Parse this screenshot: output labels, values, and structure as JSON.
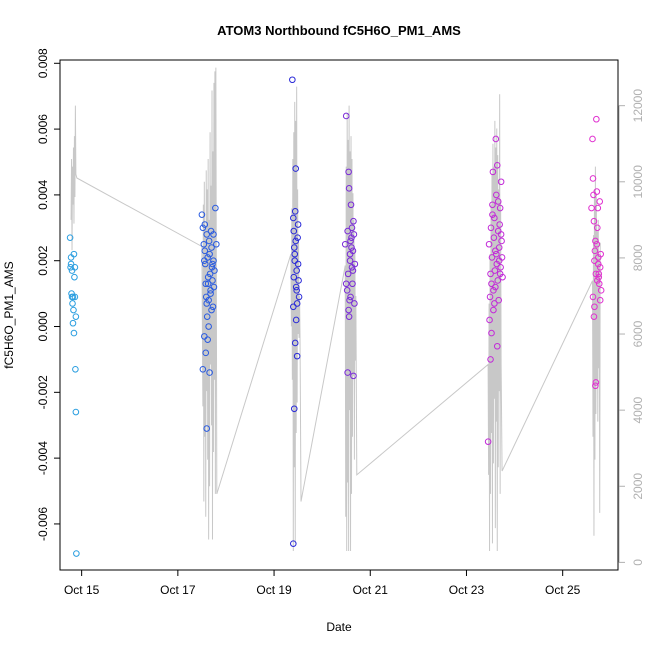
{
  "chart_data": {
    "type": "scatter",
    "title": "ATOM3 Northbound fC5H6O_PM1_AMS",
    "xlabel": "Date",
    "ylabel": "fC5H6O_PM1_AMS",
    "xlim": [
      14.55,
      26.15
    ],
    "ylim": [
      -0.0074,
      0.0081
    ],
    "y2lim": [
      -200,
      13200
    ],
    "x_ticks": [
      15,
      17,
      19,
      21,
      23,
      25
    ],
    "x_tick_labels": [
      "Oct 15",
      "Oct 17",
      "Oct 19",
      "Oct 21",
      "Oct 23",
      "Oct 25"
    ],
    "y_ticks": [
      -0.006,
      -0.004,
      -0.002,
      0.0,
      0.002,
      0.004,
      0.006,
      0.008
    ],
    "y_tick_labels": [
      "-0.006",
      "-0.004",
      "-0.002",
      "0.000",
      "0.002",
      "0.004",
      "0.006",
      "0.008"
    ],
    "y2_ticks": [
      0,
      2000,
      4000,
      6000,
      8000,
      10000,
      12000
    ],
    "y2_tick_labels": [
      "0",
      "2000",
      "4000",
      "6000",
      "8000",
      "10000",
      "12000"
    ],
    "grid": false,
    "legend": "none",
    "colors": {
      "altitude_line": "#c8c8c8",
      "right_axis": "#b0b0b0",
      "flight_1": "#2a9ee0",
      "flight_2": "#2a5be0",
      "flight_3": "#2a2ad8",
      "flight_4": "#7a2ad8",
      "flight_5": "#c22ad8",
      "flight_6": "#e030d0"
    },
    "series": [
      {
        "color_key": "flight_1",
        "x": [
          14.76,
          14.77,
          14.78,
          14.78,
          14.79,
          14.8,
          14.8,
          14.81,
          14.82,
          14.82,
          14.83,
          14.84,
          14.84,
          14.85,
          14.86,
          14.86,
          14.87,
          14.88,
          14.88,
          14.89
        ],
        "y": [
          0.0027,
          0.0018,
          0.0019,
          0.0021,
          0.001,
          0.0009,
          0.0017,
          0.0007,
          0.0009,
          0.0001,
          0.0005,
          0.0022,
          -0.0002,
          0.0015,
          0.0009,
          0.0018,
          -0.0013,
          -0.0026,
          0.0003,
          -0.0069
        ]
      },
      {
        "color_key": "flight_2",
        "x": [
          17.5,
          17.52,
          17.54,
          17.55,
          17.56,
          17.57,
          17.58,
          17.59,
          17.6,
          17.61,
          17.62,
          17.63,
          17.64,
          17.65,
          17.66,
          17.67,
          17.68,
          17.69,
          17.7,
          17.71,
          17.72,
          17.73,
          17.74,
          17.75,
          17.76,
          17.78,
          17.8,
          17.55,
          17.58,
          17.6,
          17.62,
          17.64,
          17.66,
          17.7,
          17.72,
          17.74,
          17.6,
          17.68,
          17.52,
          17.56,
          17.63
        ],
        "y": [
          0.0034,
          0.003,
          0.0025,
          0.002,
          0.0023,
          0.0019,
          0.0013,
          0.0009,
          0.0028,
          0.0003,
          0.0021,
          0.0015,
          0.0008,
          0.0026,
          0.0022,
          0.0016,
          0.0011,
          0.0029,
          0.0024,
          0.0018,
          0.0014,
          0.0006,
          0.002,
          0.0012,
          0.0017,
          0.0036,
          0.0025,
          -0.0003,
          -0.0008,
          0.0007,
          -0.0004,
          0.0,
          -0.0014,
          0.0005,
          0.0019,
          0.0028,
          -0.0031,
          0.001,
          -0.0013,
          0.0031,
          0.0013
        ]
      },
      {
        "color_key": "flight_3",
        "x": [
          19.38,
          19.4,
          19.41,
          19.42,
          19.43,
          19.44,
          19.45,
          19.46,
          19.47,
          19.48,
          19.49,
          19.5,
          19.51,
          19.52,
          19.4,
          19.42,
          19.44,
          19.46,
          19.48,
          19.5,
          19.43,
          19.45,
          19.47,
          19.4,
          19.41
        ],
        "y": [
          0.0075,
          0.0033,
          0.0029,
          0.0024,
          0.002,
          0.0035,
          0.0048,
          0.0012,
          0.0017,
          0.0007,
          0.0027,
          0.0031,
          0.0014,
          0.0009,
          -0.0066,
          -0.0025,
          -0.0005,
          0.0002,
          -0.0009,
          0.0019,
          0.0022,
          0.0026,
          0.0011,
          0.0006,
          0.0015
        ]
      },
      {
        "color_key": "flight_4",
        "x": [
          20.48,
          20.5,
          20.52,
          20.53,
          20.54,
          20.55,
          20.56,
          20.57,
          20.58,
          20.59,
          20.6,
          20.61,
          20.62,
          20.63,
          20.64,
          20.65,
          20.66,
          20.67,
          20.68,
          20.5,
          20.53,
          20.56,
          20.59,
          20.62,
          20.65,
          20.55,
          20.58,
          20.61,
          20.64
        ],
        "y": [
          0.0025,
          0.0064,
          0.0011,
          0.0029,
          0.0016,
          0.0047,
          0.0042,
          0.0008,
          0.002,
          0.0026,
          0.0037,
          0.0024,
          0.003,
          0.0013,
          0.0023,
          0.0032,
          0.0028,
          0.0007,
          0.0019,
          0.0013,
          -0.0014,
          0.0003,
          0.0009,
          0.0018,
          -0.0015,
          0.0005,
          0.0022,
          0.0027,
          0.0017
        ]
      },
      {
        "color_key": "flight_5",
        "x": [
          23.45,
          23.47,
          23.49,
          23.5,
          23.51,
          23.52,
          23.53,
          23.54,
          23.55,
          23.56,
          23.57,
          23.58,
          23.59,
          23.6,
          23.61,
          23.62,
          23.63,
          23.64,
          23.65,
          23.66,
          23.67,
          23.68,
          23.69,
          23.7,
          23.71,
          23.72,
          23.73,
          23.74,
          23.75,
          23.48,
          23.52,
          23.56,
          23.6,
          23.64,
          23.68,
          23.72,
          23.5,
          23.54,
          23.58,
          23.62,
          23.66,
          23.7
        ],
        "y": [
          -0.0035,
          0.0025,
          0.0009,
          0.0016,
          0.003,
          0.0013,
          0.0021,
          0.0037,
          0.0047,
          0.0011,
          0.0027,
          0.0033,
          0.0017,
          0.0023,
          0.0057,
          0.004,
          0.0019,
          0.0049,
          0.0014,
          0.0029,
          0.0008,
          0.0024,
          0.0031,
          0.0036,
          0.0018,
          0.0044,
          0.0026,
          0.0021,
          0.0015,
          0.0002,
          -0.0002,
          0.0005,
          0.0012,
          -0.0006,
          0.002,
          0.0028,
          -0.001,
          0.0034,
          0.0007,
          0.0022,
          0.0038,
          0.0016
        ]
      },
      {
        "color_key": "flight_6",
        "x": [
          25.6,
          25.62,
          25.63,
          25.64,
          25.65,
          25.66,
          25.67,
          25.68,
          25.69,
          25.7,
          25.71,
          25.72,
          25.73,
          25.74,
          25.75,
          25.76,
          25.77,
          25.78,
          25.79,
          25.8,
          25.63,
          25.66,
          25.69,
          25.72,
          25.75,
          25.78,
          25.65,
          25.68,
          25.71,
          25.74
        ],
        "y": [
          0.0036,
          0.0057,
          0.0045,
          0.004,
          0.0032,
          0.002,
          0.0023,
          0.0026,
          0.0016,
          0.0063,
          0.0041,
          0.003,
          0.0036,
          0.0021,
          0.0015,
          0.0013,
          0.0038,
          0.0018,
          0.0022,
          0.0011,
          0.0009,
          0.0006,
          -0.0017,
          0.0014,
          0.0016,
          0.0008,
          0.0003,
          -0.0018,
          0.0025,
          0.0019
        ]
      }
    ],
    "altitude_series": {
      "points": [
        [
          14.78,
          9000
        ],
        [
          14.79,
          10600
        ],
        [
          14.8,
          8200
        ],
        [
          14.81,
          10400
        ],
        [
          14.82,
          9400
        ],
        [
          14.83,
          10900
        ],
        [
          14.84,
          8900
        ],
        [
          14.85,
          11200
        ],
        [
          14.86,
          9600
        ],
        [
          14.87,
          12000
        ],
        [
          14.88,
          10200
        ],
        [
          14.9,
          10100
        ],
        [
          17.5,
          8300
        ],
        [
          17.52,
          4100
        ],
        [
          17.53,
          9400
        ],
        [
          17.54,
          1600
        ],
        [
          17.55,
          10000
        ],
        [
          17.56,
          3300
        ],
        [
          17.57,
          8800
        ],
        [
          17.58,
          1200
        ],
        [
          17.59,
          10300
        ],
        [
          17.6,
          4500
        ],
        [
          17.61,
          9800
        ],
        [
          17.62,
          2700
        ],
        [
          17.63,
          10600
        ],
        [
          17.64,
          600
        ],
        [
          17.65,
          9000
        ],
        [
          17.66,
          2000
        ],
        [
          17.67,
          11300
        ],
        [
          17.68,
          5200
        ],
        [
          17.69,
          9900
        ],
        [
          17.7,
          3600
        ],
        [
          17.71,
          12400
        ],
        [
          17.72,
          600
        ],
        [
          17.73,
          10800
        ],
        [
          17.74,
          2900
        ],
        [
          17.75,
          12600
        ],
        [
          17.76,
          4800
        ],
        [
          17.77,
          12900
        ],
        [
          17.78,
          1800
        ],
        [
          17.79,
          13000
        ],
        [
          17.81,
          1800
        ],
        [
          19.35,
          8100
        ],
        [
          19.36,
          6200
        ],
        [
          19.37,
          9300
        ],
        [
          19.38,
          4800
        ],
        [
          19.39,
          10600
        ],
        [
          19.4,
          300
        ],
        [
          19.41,
          11300
        ],
        [
          19.42,
          2500
        ],
        [
          19.43,
          12100
        ],
        [
          19.44,
          500
        ],
        [
          19.45,
          11600
        ],
        [
          19.46,
          3400
        ],
        [
          19.47,
          12500
        ],
        [
          19.48,
          4200
        ],
        [
          19.49,
          9800
        ],
        [
          19.5,
          6000
        ],
        [
          19.51,
          8400
        ],
        [
          19.52,
          5900
        ],
        [
          19.53,
          7000
        ],
        [
          19.54,
          5800
        ],
        [
          19.56,
          1600
        ],
        [
          20.48,
          7800
        ],
        [
          20.49,
          1200
        ],
        [
          20.5,
          10400
        ],
        [
          20.51,
          300
        ],
        [
          20.52,
          11800
        ],
        [
          20.53,
          2100
        ],
        [
          20.54,
          11100
        ],
        [
          20.55,
          300
        ],
        [
          20.56,
          12000
        ],
        [
          20.57,
          4000
        ],
        [
          20.58,
          10800
        ],
        [
          20.59,
          300
        ],
        [
          20.6,
          11200
        ],
        [
          20.61,
          1800
        ],
        [
          20.62,
          10600
        ],
        [
          20.63,
          3300
        ],
        [
          20.64,
          9700
        ],
        [
          20.65,
          4900
        ],
        [
          20.66,
          9000
        ],
        [
          20.67,
          2700
        ],
        [
          20.68,
          8200
        ],
        [
          20.69,
          5300
        ],
        [
          20.7,
          7000
        ],
        [
          20.72,
          2300
        ],
        [
          23.45,
          5200
        ],
        [
          23.46,
          2300
        ],
        [
          23.47,
          6800
        ],
        [
          23.48,
          300
        ],
        [
          23.49,
          8100
        ],
        [
          23.5,
          1800
        ],
        [
          23.51,
          9400
        ],
        [
          23.52,
          3400
        ],
        [
          23.53,
          10200
        ],
        [
          23.54,
          500
        ],
        [
          23.55,
          11000
        ],
        [
          23.56,
          2600
        ],
        [
          23.57,
          10400
        ],
        [
          23.58,
          4300
        ],
        [
          23.59,
          11600
        ],
        [
          23.6,
          900
        ],
        [
          23.61,
          10900
        ],
        [
          23.62,
          3700
        ],
        [
          23.63,
          11400
        ],
        [
          23.64,
          300
        ],
        [
          23.65,
          10700
        ],
        [
          23.66,
          2500
        ],
        [
          23.67,
          9800
        ],
        [
          23.68,
          4500
        ],
        [
          23.69,
          12300
        ],
        [
          23.7,
          1800
        ],
        [
          23.71,
          9500
        ],
        [
          23.72,
          5200
        ],
        [
          23.74,
          2400
        ],
        [
          25.62,
          7400
        ],
        [
          25.63,
          3300
        ],
        [
          25.64,
          8600
        ],
        [
          25.65,
          700
        ],
        [
          25.66,
          9800
        ],
        [
          25.67,
          2700
        ],
        [
          25.68,
          10400
        ],
        [
          25.69,
          3900
        ],
        [
          25.7,
          9600
        ],
        [
          25.71,
          4700
        ],
        [
          25.72,
          8700
        ],
        [
          25.73,
          3700
        ],
        [
          25.74,
          9000
        ],
        [
          25.75,
          5100
        ],
        [
          25.76,
          8000
        ],
        [
          25.77,
          1300
        ],
        [
          25.78,
          8400
        ]
      ]
    }
  }
}
